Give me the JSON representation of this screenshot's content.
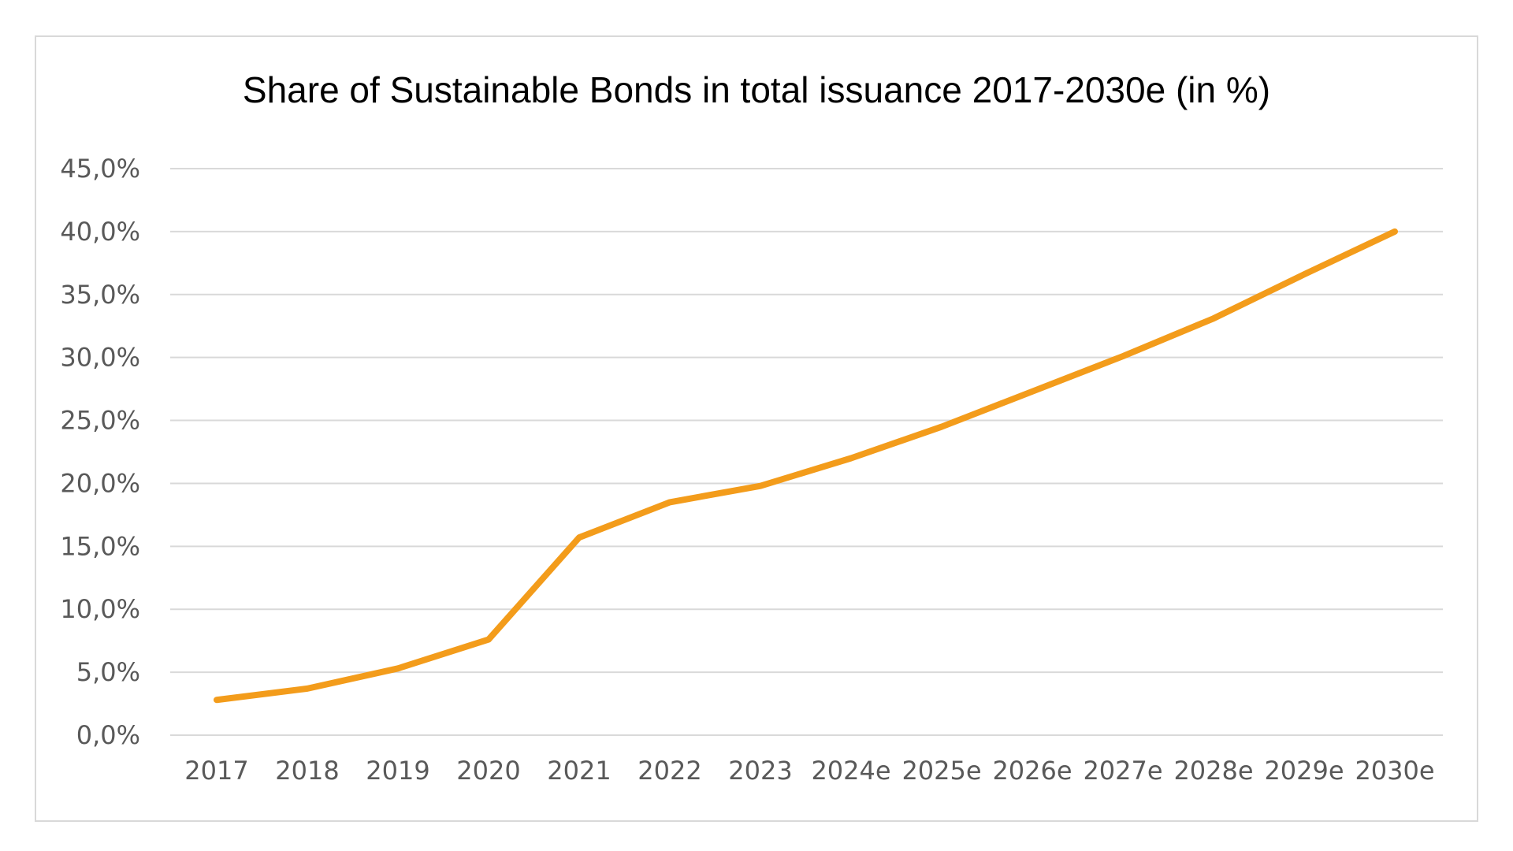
{
  "chart_data": {
    "type": "line",
    "title": "Share of Sustainable Bonds in total issuance 2017-2030e (in %)",
    "xlabel": "",
    "ylabel": "",
    "categories": [
      "2017",
      "2018",
      "2019",
      "2020",
      "2021",
      "2022",
      "2023",
      "2024e",
      "2025e",
      "2026e",
      "2027e",
      "2028e",
      "2029e",
      "2030e"
    ],
    "series": [
      {
        "values": [
          2.8,
          3.7,
          5.3,
          7.6,
          15.7,
          18.5,
          19.8,
          22.0,
          24.5,
          27.3,
          30.1,
          33.1,
          36.6,
          40.0
        ]
      }
    ],
    "ylim": [
      0,
      45
    ],
    "yticks": [
      "0,0%",
      "5,0%",
      "10,0%",
      "15,0%",
      "20,0%",
      "25,0%",
      "30,0%",
      "35,0%",
      "40,0%",
      "45,0%"
    ],
    "grid": true,
    "legend": "none",
    "colors": {
      "line": "#f39c1b",
      "grid": "#d9d9d9",
      "tick_text": "#595959",
      "border": "#d9d9d9"
    }
  }
}
